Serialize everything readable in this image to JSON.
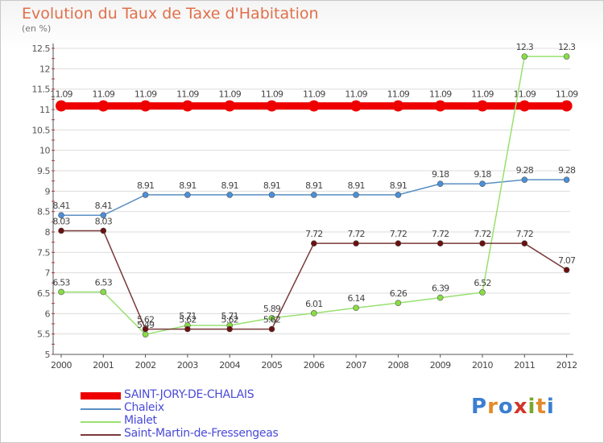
{
  "title": "Evolution du Taux de Taxe d'Habitation",
  "unit": "(en %)",
  "logo": {
    "text": "Proxiti",
    "colors": [
      "#3a7fd0",
      "#e38a2a",
      "#3a7fd0",
      "#d2342a",
      "#7aa82c",
      "#e38a2a",
      "#3a7fd0"
    ]
  },
  "chart_data": {
    "type": "line",
    "title": "Evolution du Taux de Taxe d'Habitation",
    "xlabel": "",
    "ylabel": "(en %)",
    "x": [
      "2000",
      "2001",
      "2002",
      "2003",
      "2004",
      "2005",
      "2006",
      "2007",
      "2008",
      "2009",
      "2010",
      "2011",
      "2012"
    ],
    "ylim": [
      5,
      12.5
    ],
    "yticks": [
      "5",
      "5.5",
      "6",
      "6.5",
      "7",
      "7.5",
      "8",
      "8.5",
      "9",
      "9.5",
      "10",
      "10.5",
      "11",
      "11.5",
      "12",
      "12.5"
    ],
    "grid": "horizontal",
    "legend_position": "bottom",
    "series": [
      {
        "name": "SAINT-JORY-DE-CHALAIS",
        "color": "#ee0000",
        "bold": true,
        "values": [
          11.09,
          11.09,
          11.09,
          11.09,
          11.09,
          11.09,
          11.09,
          11.09,
          11.09,
          11.09,
          11.09,
          11.09,
          11.09
        ],
        "labels": [
          "11.09",
          "11.09",
          "11.09",
          "11.09",
          "11.09",
          "11.09",
          "11.09",
          "11.09",
          "11.09",
          "11.09",
          "11.09",
          "11.09",
          "11.09"
        ]
      },
      {
        "name": "Chaleix",
        "color": "#5a8fc4",
        "marker": "#4a90d9",
        "values": [
          8.41,
          8.41,
          8.91,
          8.91,
          8.91,
          8.91,
          8.91,
          8.91,
          8.91,
          9.18,
          9.18,
          9.28,
          9.28
        ],
        "labels": [
          "8.41",
          "8.41",
          "8.91",
          "8.91",
          "8.91",
          "8.91",
          "8.91",
          "8.91",
          "8.91",
          "9.18",
          "9.18",
          "9.28",
          "9.28"
        ]
      },
      {
        "name": "Mialet",
        "color": "#99e070",
        "marker": "#88dd44",
        "values": [
          6.53,
          6.53,
          5.49,
          5.71,
          5.71,
          5.89,
          6.01,
          6.14,
          6.26,
          6.39,
          6.52,
          12.3,
          12.3
        ],
        "labels": [
          "6.53",
          "6.53",
          "5.49",
          "5.71",
          "5.71",
          "5.89",
          "6.01",
          "6.14",
          "6.26",
          "6.39",
          "6.52",
          "12.3",
          "12.3"
        ]
      },
      {
        "name": "Saint-Martin-de-Fressengeas",
        "color": "#7a3a3a",
        "marker": "#6a1010",
        "values": [
          8.03,
          8.03,
          5.62,
          5.62,
          5.62,
          5.62,
          7.72,
          7.72,
          7.72,
          7.72,
          7.72,
          7.72,
          7.07
        ],
        "labels": [
          "8.03",
          "8.03",
          "5.62",
          "5.62",
          "5.62",
          "5.62",
          "7.72",
          "7.72",
          "7.72",
          "7.72",
          "7.72",
          "7.72",
          "7.07"
        ]
      }
    ]
  }
}
